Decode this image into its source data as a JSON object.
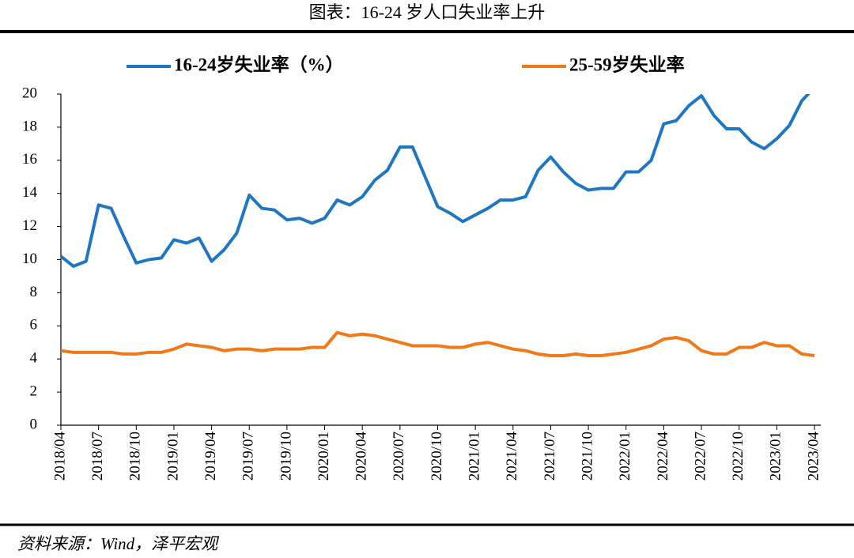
{
  "header": {
    "title": "图表：16-24 岁人口失业率上升"
  },
  "chart_data": {
    "type": "line",
    "categories": [
      "2018/04",
      null,
      null,
      "2018/07",
      null,
      null,
      "2018/10",
      null,
      null,
      "2019/01",
      null,
      null,
      "2019/04",
      null,
      null,
      "2019/07",
      null,
      null,
      "2019/10",
      null,
      null,
      "2020/01",
      null,
      null,
      "2020/04",
      null,
      null,
      "2020/07",
      null,
      null,
      "2020/10",
      null,
      null,
      "2021/01",
      null,
      null,
      "2021/04",
      null,
      null,
      "2021/07",
      null,
      null,
      "2021/10",
      null,
      null,
      "2022/01",
      null,
      null,
      "2022/04",
      null,
      null,
      "2022/07",
      null,
      null,
      "2022/10",
      null,
      null,
      "2023/01",
      null,
      null,
      "2023/04"
    ],
    "series": [
      {
        "name": "16-24岁失业率（%）",
        "color": "#1f77c4",
        "values": [
          10.2,
          9.6,
          9.9,
          13.3,
          13.1,
          11.4,
          9.8,
          10.0,
          10.1,
          11.2,
          11.0,
          11.3,
          9.9,
          10.6,
          11.6,
          13.9,
          13.1,
          13.0,
          12.4,
          12.5,
          12.2,
          12.5,
          13.6,
          13.3,
          13.8,
          14.8,
          15.4,
          16.8,
          16.8,
          15.0,
          13.2,
          12.8,
          12.3,
          12.7,
          13.1,
          13.6,
          13.6,
          13.8,
          15.4,
          16.2,
          15.3,
          14.6,
          14.2,
          14.3,
          14.3,
          15.3,
          15.3,
          16.0,
          18.2,
          18.4,
          19.3,
          19.9,
          18.7,
          17.9,
          17.9,
          17.1,
          16.7,
          17.3,
          18.1,
          19.6,
          20.4
        ]
      },
      {
        "name": "25-59岁失业率",
        "color": "#f07a1a",
        "values": [
          4.5,
          4.4,
          4.4,
          4.4,
          4.4,
          4.3,
          4.3,
          4.4,
          4.4,
          4.6,
          4.9,
          4.8,
          4.7,
          4.5,
          4.6,
          4.6,
          4.5,
          4.6,
          4.6,
          4.6,
          4.7,
          4.7,
          5.6,
          5.4,
          5.5,
          5.4,
          5.2,
          5.0,
          4.8,
          4.8,
          4.8,
          4.7,
          4.7,
          4.9,
          5.0,
          4.8,
          4.6,
          4.5,
          4.3,
          4.2,
          4.2,
          4.3,
          4.2,
          4.2,
          4.3,
          4.4,
          4.6,
          4.8,
          5.2,
          5.3,
          5.1,
          4.5,
          4.3,
          4.3,
          4.7,
          4.7,
          5.0,
          4.8,
          4.8,
          4.3,
          4.2
        ]
      }
    ],
    "ylim": [
      0,
      20
    ],
    "yticks": [
      0,
      2,
      4,
      6,
      8,
      10,
      12,
      14,
      16,
      18,
      20
    ]
  },
  "footer": {
    "source": "资料来源：Wind，泽平宏观"
  }
}
